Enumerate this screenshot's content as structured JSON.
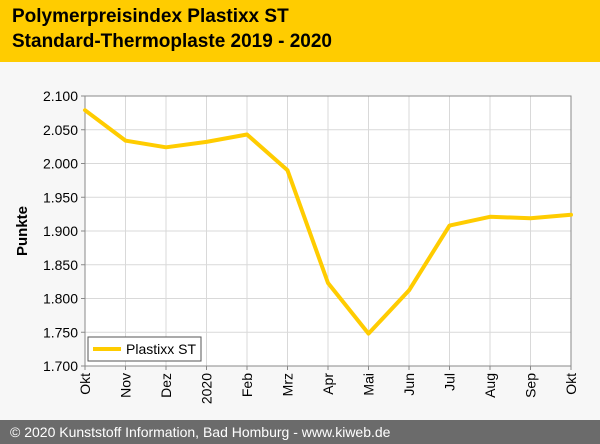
{
  "header": {
    "title_line1": "Polymerpreisindex Plastixx ST",
    "title_line2": "Standard-Thermoplaste 2019 - 2020"
  },
  "footer": {
    "text": "© 2020 Kunststoff Information, Bad Homburg - www.kiweb.de"
  },
  "colors": {
    "header_bg": "#ffcc00",
    "series_line": "#ffcc00",
    "footer_bg": "#6b6b6b",
    "plot_bg": "#ffffff",
    "grid": "#d9d9d9"
  },
  "chart_data": {
    "type": "line",
    "title": "Polymerpreisindex Plastixx ST Standard-Thermoplaste 2019 - 2020",
    "xlabel": "",
    "ylabel": "Punkte",
    "ylim": [
      1.7,
      2.1
    ],
    "y_ticks": [
      "2.100",
      "2.050",
      "2.000",
      "1.950",
      "1.900",
      "1.850",
      "1.800",
      "1.750",
      "1.700"
    ],
    "y_tick_values": [
      2.1,
      2.05,
      2.0,
      1.95,
      1.9,
      1.85,
      1.8,
      1.75,
      1.7
    ],
    "categories": [
      "Okt",
      "Nov",
      "Dez",
      "2020",
      "Feb",
      "Mrz",
      "Apr",
      "Mai",
      "Jun",
      "Jul",
      "Aug",
      "Sep",
      "Okt"
    ],
    "grid": true,
    "legend_position": "bottom-left",
    "series": [
      {
        "name": "Plastixx ST",
        "values": [
          2.079,
          2.034,
          2.024,
          2.032,
          2.043,
          1.99,
          1.823,
          1.748,
          1.812,
          1.908,
          1.921,
          1.919,
          1.924
        ]
      }
    ]
  }
}
